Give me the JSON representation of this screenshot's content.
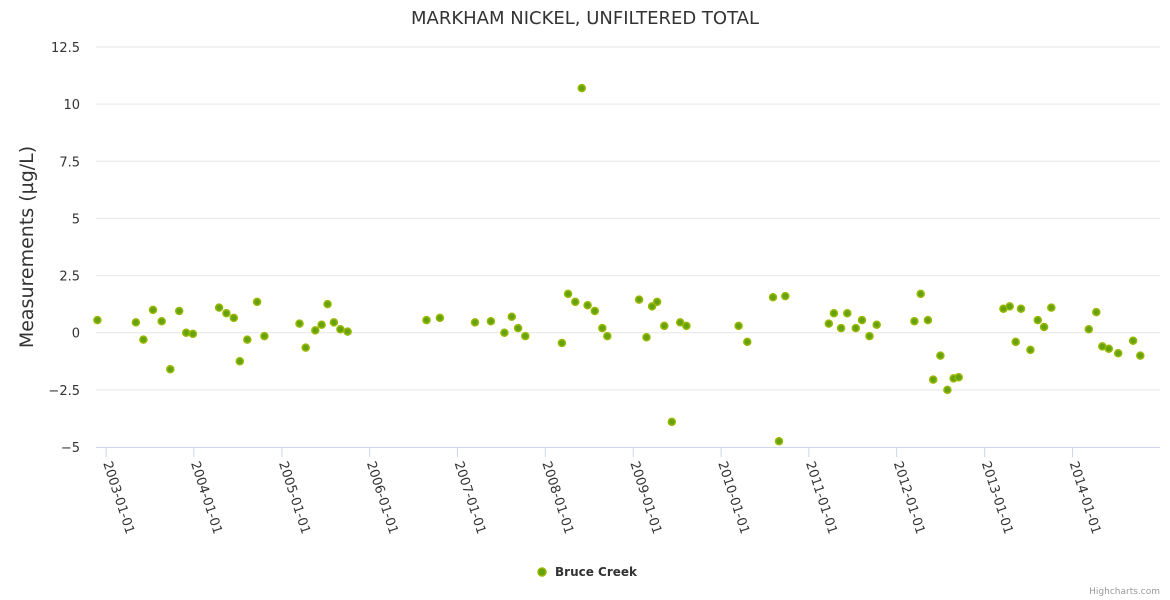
{
  "chart_data": {
    "type": "scatter",
    "title": "MARKHAM NICKEL, UNFILTERED TOTAL",
    "xlabel": "",
    "ylabel": "Measurements (µg/L)",
    "ylim": [
      -5,
      12.5
    ],
    "yticks": [
      -5,
      -2.5,
      0,
      2.5,
      5,
      7.5,
      10,
      12.5
    ],
    "ytick_labels": [
      "−5",
      "−2.5",
      "0",
      "2.5",
      "5",
      "7.5",
      "10",
      "12.5"
    ],
    "xlim": [
      "2002-11-20",
      "2014-12-31"
    ],
    "xticks": [
      "2003-01-01",
      "2004-01-01",
      "2005-01-01",
      "2006-01-01",
      "2007-01-01",
      "2008-01-01",
      "2009-01-01",
      "2010-01-01",
      "2011-01-01",
      "2012-01-01",
      "2013-01-01",
      "2014-01-01"
    ],
    "grid": true,
    "legend_position": "bottom-center",
    "series": [
      {
        "name": "Bruce Creek",
        "color": "#65a30d",
        "stroke": "#9ab700",
        "points": [
          [
            "2002-11-26",
            0.55
          ],
          [
            "2003-05-05",
            0.45
          ],
          [
            "2003-06-05",
            -0.3
          ],
          [
            "2003-07-15",
            1.0
          ],
          [
            "2003-08-20",
            0.5
          ],
          [
            "2003-09-25",
            -1.6
          ],
          [
            "2003-11-01",
            0.95
          ],
          [
            "2003-11-30",
            0.0
          ],
          [
            "2003-12-28",
            -0.05
          ],
          [
            "2004-04-15",
            1.1
          ],
          [
            "2004-05-15",
            0.85
          ],
          [
            "2004-06-15",
            0.65
          ],
          [
            "2004-07-10",
            -1.25
          ],
          [
            "2004-08-10",
            -0.3
          ],
          [
            "2004-09-20",
            1.35
          ],
          [
            "2004-10-20",
            -0.15
          ],
          [
            "2005-03-15",
            0.4
          ],
          [
            "2005-04-10",
            -0.65
          ],
          [
            "2005-05-20",
            0.1
          ],
          [
            "2005-06-15",
            0.35
          ],
          [
            "2005-07-10",
            1.25
          ],
          [
            "2005-08-05",
            0.45
          ],
          [
            "2005-09-01",
            0.15
          ],
          [
            "2005-10-01",
            0.05
          ],
          [
            "2006-08-25",
            0.55
          ],
          [
            "2006-10-20",
            0.65
          ],
          [
            "2007-03-15",
            0.45
          ],
          [
            "2007-05-20",
            0.5
          ],
          [
            "2007-07-15",
            0.0
          ],
          [
            "2007-08-15",
            0.7
          ],
          [
            "2007-09-10",
            0.2
          ],
          [
            "2007-10-10",
            -0.15
          ],
          [
            "2008-03-10",
            -0.45
          ],
          [
            "2008-04-05",
            1.7
          ],
          [
            "2008-05-05",
            1.35
          ],
          [
            "2008-06-01",
            10.7
          ],
          [
            "2008-06-25",
            1.2
          ],
          [
            "2008-07-25",
            0.95
          ],
          [
            "2008-08-25",
            0.2
          ],
          [
            "2008-09-15",
            -0.15
          ],
          [
            "2009-01-25",
            1.45
          ],
          [
            "2009-02-25",
            -0.2
          ],
          [
            "2009-03-20",
            1.15
          ],
          [
            "2009-04-10",
            1.35
          ],
          [
            "2009-05-10",
            0.3
          ],
          [
            "2009-06-10",
            -3.9
          ],
          [
            "2009-07-15",
            0.45
          ],
          [
            "2009-08-10",
            0.3
          ],
          [
            "2010-03-15",
            0.3
          ],
          [
            "2010-04-20",
            -0.4
          ],
          [
            "2010-08-05",
            1.55
          ],
          [
            "2010-08-30",
            -4.75
          ],
          [
            "2010-09-25",
            1.6
          ],
          [
            "2011-03-25",
            0.4
          ],
          [
            "2011-04-15",
            0.85
          ],
          [
            "2011-05-15",
            0.2
          ],
          [
            "2011-06-10",
            0.85
          ],
          [
            "2011-07-15",
            0.2
          ],
          [
            "2011-08-10",
            0.55
          ],
          [
            "2011-09-10",
            -0.15
          ],
          [
            "2011-10-10",
            0.35
          ],
          [
            "2012-03-15",
            0.5
          ],
          [
            "2012-04-10",
            1.7
          ],
          [
            "2012-05-10",
            0.55
          ],
          [
            "2012-06-01",
            -2.05
          ],
          [
            "2012-07-01",
            -1.0
          ],
          [
            "2012-07-30",
            -2.5
          ],
          [
            "2012-08-25",
            -2.0
          ],
          [
            "2012-09-15",
            -1.95
          ],
          [
            "2013-03-20",
            1.05
          ],
          [
            "2013-04-15",
            1.15
          ],
          [
            "2013-05-10",
            -0.4
          ],
          [
            "2013-06-01",
            1.05
          ],
          [
            "2013-07-10",
            -0.75
          ],
          [
            "2013-08-10",
            0.55
          ],
          [
            "2013-09-05",
            0.25
          ],
          [
            "2013-10-05",
            1.1
          ],
          [
            "2014-03-10",
            0.15
          ],
          [
            "2014-04-10",
            0.9
          ],
          [
            "2014-05-05",
            -0.6
          ],
          [
            "2014-06-01",
            -0.7
          ],
          [
            "2014-07-10",
            -0.9
          ],
          [
            "2014-09-10",
            -0.35
          ],
          [
            "2014-10-10",
            -1.0
          ]
        ]
      }
    ]
  },
  "credits": "Highcharts.com"
}
